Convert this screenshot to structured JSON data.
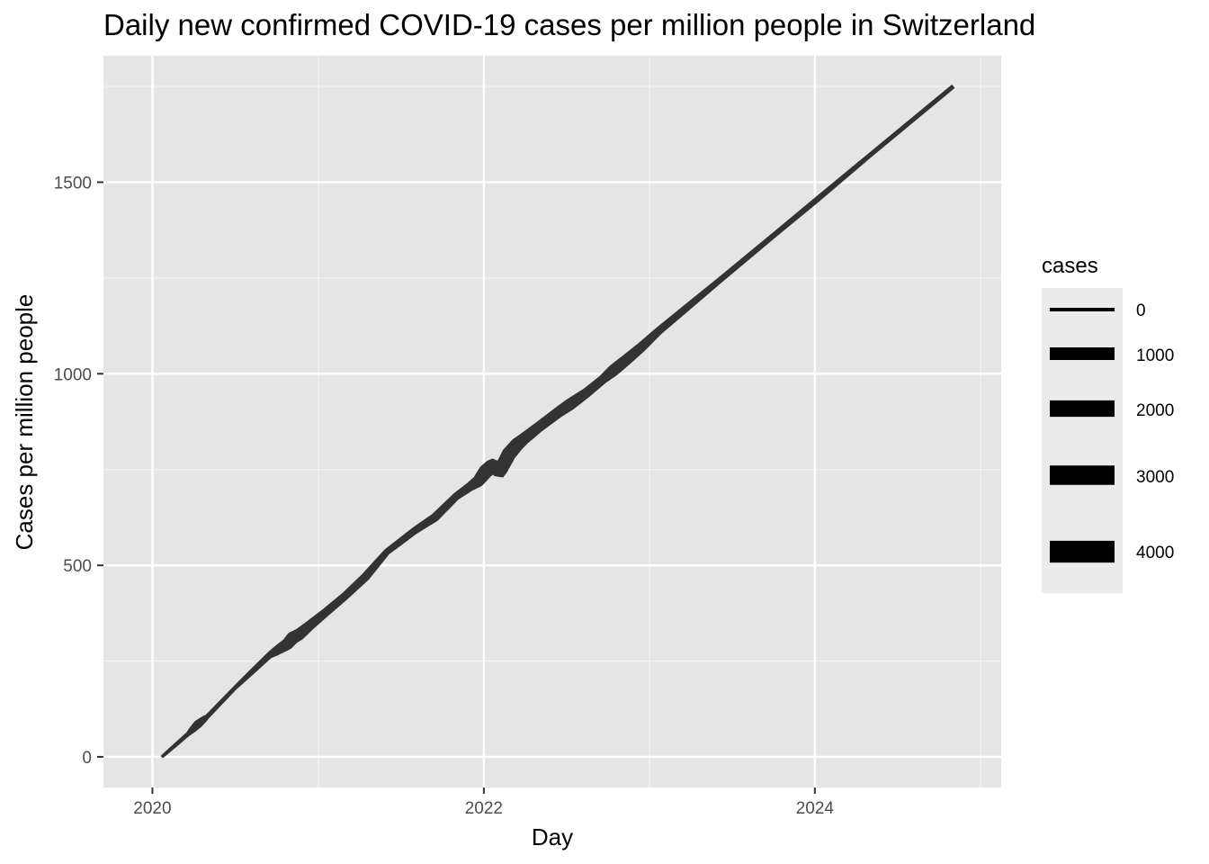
{
  "chart_data": {
    "type": "line",
    "title": "Daily new confirmed COVID-19 cases per million people in Switzerland",
    "xlabel": "Day",
    "ylabel": "Cases per million people",
    "x_ticks": [
      "2020",
      "2022",
      "2024"
    ],
    "y_ticks": [
      "0",
      "500",
      "1000",
      "1500"
    ],
    "xlim": [
      "2019-09-15",
      "2025-02-15"
    ],
    "ylim": [
      -80,
      1830
    ],
    "grid": true,
    "legend": {
      "title": "cases",
      "placement": "right",
      "entries": [
        "0",
        "1000",
        "2000",
        "3000",
        "4000"
      ],
      "entry_values": [
        0,
        1000,
        2000,
        3000,
        4000
      ]
    },
    "series": [
      {
        "color": "#333333",
        "x": [
          "2020-01-22",
          "2020-03-20",
          "2020-04-10",
          "2020-05-01",
          "2020-07-01",
          "2020-09-15",
          "2020-10-25",
          "2020-11-05",
          "2020-11-20",
          "2020-12-15",
          "2021-01-15",
          "2021-03-01",
          "2021-04-15",
          "2021-06-01",
          "2021-08-01",
          "2021-09-15",
          "2021-11-01",
          "2021-12-01",
          "2021-12-20",
          "2022-01-05",
          "2022-01-20",
          "2022-02-05",
          "2022-02-25",
          "2022-03-15",
          "2022-03-30",
          "2022-05-01",
          "2022-06-15",
          "2022-07-10",
          "2022-08-15",
          "2022-09-20",
          "2022-10-15",
          "2022-11-15",
          "2022-12-15",
          "2023-01-20",
          "2023-06-01",
          "2023-10-01",
          "2024-01-01",
          "2024-05-01",
          "2024-11-01"
        ],
        "values": [
          0,
          60,
          85,
          105,
          180,
          265,
          295,
          310,
          320,
          345,
          375,
          420,
          470,
          535,
          590,
          625,
          680,
          705,
          720,
          745,
          760,
          745,
          790,
          815,
          830,
          860,
          900,
          920,
          950,
          985,
          1010,
          1040,
          1070,
          1110,
          1240,
          1360,
          1450,
          1570,
          1750
        ],
        "case_counts": [
          0,
          80,
          1000,
          100,
          50,
          400,
          2500,
          3000,
          2500,
          1500,
          1000,
          800,
          1000,
          400,
          600,
          1000,
          700,
          1200,
          2500,
          4000,
          4000,
          3500,
          4000,
          3500,
          2500,
          1800,
          2000,
          2500,
          1500,
          1200,
          2500,
          2000,
          1500,
          800,
          300,
          200,
          250,
          100,
          80
        ]
      }
    ]
  }
}
